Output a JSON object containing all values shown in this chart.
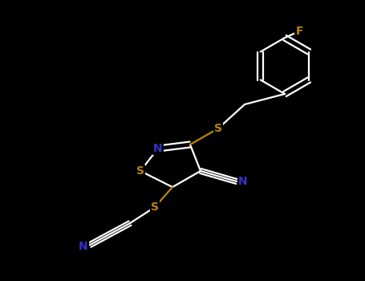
{
  "background_color": "#000000",
  "atom_colors": {
    "S": "#b8860b",
    "N": "#3333cc",
    "F": "#b8860b",
    "C": "#ffffff"
  },
  "figsize": [
    4.55,
    3.5
  ],
  "dpi": 100
}
